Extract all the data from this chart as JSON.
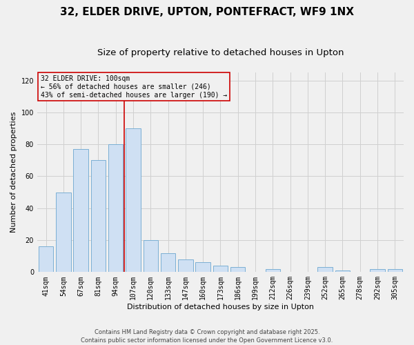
{
  "title": "32, ELDER DRIVE, UPTON, PONTEFRACT, WF9 1NX",
  "subtitle": "Size of property relative to detached houses in Upton",
  "xlabel": "Distribution of detached houses by size in Upton",
  "ylabel": "Number of detached properties",
  "categories": [
    "41sqm",
    "54sqm",
    "67sqm",
    "81sqm",
    "94sqm",
    "107sqm",
    "120sqm",
    "133sqm",
    "147sqm",
    "160sqm",
    "173sqm",
    "186sqm",
    "199sqm",
    "212sqm",
    "226sqm",
    "239sqm",
    "252sqm",
    "265sqm",
    "278sqm",
    "292sqm",
    "305sqm"
  ],
  "values": [
    16,
    50,
    77,
    70,
    80,
    90,
    20,
    12,
    8,
    6,
    4,
    3,
    0,
    2,
    0,
    0,
    3,
    1,
    0,
    2,
    2
  ],
  "bar_color": "#cfe0f3",
  "bar_edge_color": "#7aafd4",
  "vline_x": 4.5,
  "vline_color": "#cc0000",
  "ylim": [
    0,
    125
  ],
  "yticks": [
    0,
    20,
    40,
    60,
    80,
    100,
    120
  ],
  "annotation_line1": "32 ELDER DRIVE: 100sqm",
  "annotation_line2": "← 56% of detached houses are smaller (246)",
  "annotation_line3": "43% of semi-detached houses are larger (190) →",
  "footer_line1": "Contains HM Land Registry data © Crown copyright and database right 2025.",
  "footer_line2": "Contains public sector information licensed under the Open Government Licence v3.0.",
  "bg_color": "#f0f0f0",
  "grid_color": "#d0d0d0",
  "title_fontsize": 11,
  "subtitle_fontsize": 9.5,
  "axis_label_fontsize": 8,
  "tick_fontsize": 7,
  "annot_fontsize": 7,
  "footer_fontsize": 6
}
